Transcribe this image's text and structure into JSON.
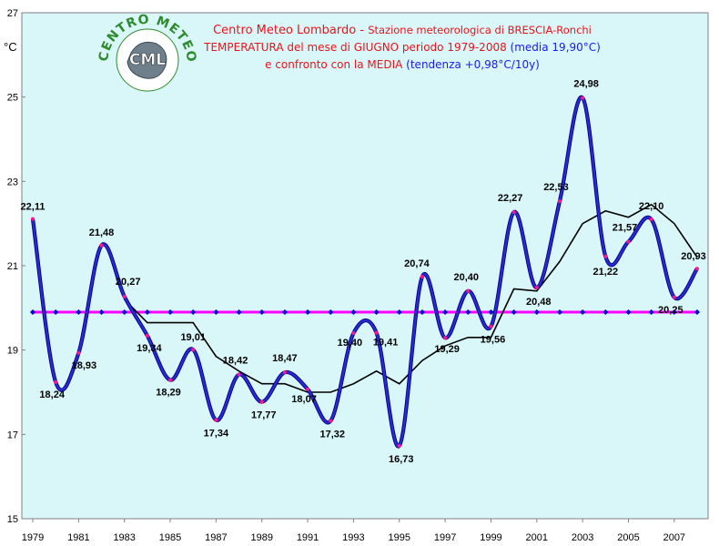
{
  "title": {
    "line1_red": "Centro Meteo Lombardo - ",
    "line1_red2": "Stazione meteorologica di BRESCIA-Ronchi",
    "line2_red": "TEMPERATURA del mese di GIUGNO periodo 1979-2008 ",
    "line2_blue": "(media 19,90°C)",
    "line3_red": "e confronto con la MEDIA ",
    "line3_blue": "(tendenza +0,98°C/10y)"
  },
  "logo": {
    "ring_text": "CENTRO METEO LOMBARDO",
    "center_text": "CML"
  },
  "colors": {
    "background": "#ffffff",
    "plot_bg": "#d9f7f9",
    "series_line": "#2a2ad4",
    "series_border": "#000080",
    "points": "#ff1493",
    "mean_line": "#ff00ff",
    "mean_markers": "#0000cc",
    "trend_line": "#000000",
    "title_red": "#e8141c",
    "title_blue": "#1a1aee",
    "logo_green": "#2e8b2e"
  },
  "chart_data": {
    "type": "line",
    "x": [
      1979,
      1980,
      1981,
      1982,
      1983,
      1984,
      1985,
      1986,
      1987,
      1988,
      1989,
      1990,
      1991,
      1992,
      1993,
      1994,
      1995,
      1996,
      1997,
      1998,
      1999,
      2000,
      2001,
      2002,
      2003,
      2004,
      2005,
      2006,
      2007,
      2008
    ],
    "series": [
      {
        "values": [
          22.11,
          18.24,
          18.93,
          21.48,
          20.27,
          19.34,
          18.29,
          19.01,
          17.34,
          18.42,
          17.77,
          18.47,
          18.07,
          17.32,
          19.4,
          19.41,
          16.73,
          20.74,
          19.29,
          20.4,
          19.56,
          22.27,
          20.48,
          22.53,
          24.98,
          21.22,
          21.57,
          22.1,
          20.25,
          20.93
        ]
      },
      {
        "values": [
          null,
          null,
          null,
          null,
          20.2,
          19.65,
          19.65,
          19.65,
          18.85,
          18.5,
          18.2,
          18.2,
          18.0,
          18.0,
          18.2,
          18.5,
          18.2,
          18.75,
          19.1,
          19.3,
          19.3,
          20.45,
          20.4,
          21.1,
          22.0,
          22.3,
          22.15,
          22.45,
          22.0,
          21.2
        ]
      },
      {
        "values": [
          19.9,
          19.9,
          19.9,
          19.9,
          19.9,
          19.9,
          19.9,
          19.9,
          19.9,
          19.9,
          19.9,
          19.9,
          19.9,
          19.9,
          19.9,
          19.9,
          19.9,
          19.9,
          19.9,
          19.9,
          19.9,
          19.9,
          19.9,
          19.9,
          19.9,
          19.9,
          19.9,
          19.9,
          19.9,
          19.9
        ]
      }
    ],
    "data_labels": [
      "22,11",
      "18,24",
      "18,93",
      "21,48",
      "20,27",
      "19,34",
      "18,29",
      "19,01",
      "17,34",
      "18,42",
      "17,77",
      "18,47",
      "18,07",
      "17,32",
      "19,40",
      "19,41",
      "16,73",
      "20,74",
      "19,29",
      "20,40",
      "19,56",
      "22,27",
      "20,48",
      "22,53",
      "24,98",
      "21,22",
      "21,57",
      "22,10",
      "20,25",
      "20,93"
    ],
    "x_tick_labels": [
      "1979",
      "1981",
      "1983",
      "1985",
      "1987",
      "1989",
      "1991",
      "1993",
      "1995",
      "1997",
      "1999",
      "2001",
      "2003",
      "2005",
      "2007"
    ],
    "y_tick_labels": [
      "15",
      "17",
      "19",
      "21",
      "23",
      "25",
      "27"
    ],
    "ylabel": "°C",
    "xlim": [
      1979,
      2008
    ],
    "ylim": [
      15,
      27
    ],
    "grid": false,
    "legend": "none"
  }
}
